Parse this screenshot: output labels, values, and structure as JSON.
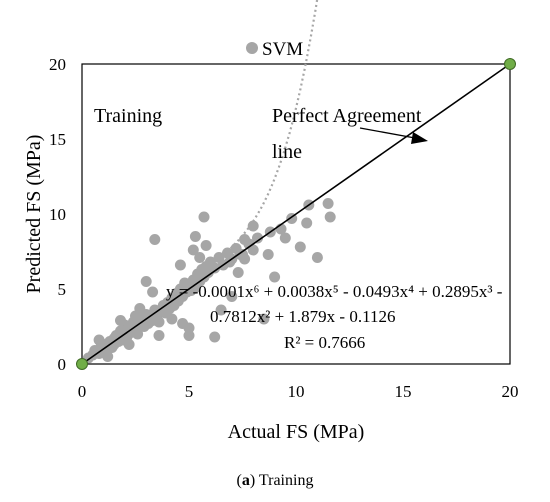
{
  "chart_data": {
    "type": "scatter",
    "xlabel": "Actual FS (MPa)",
    "ylabel": "Predicted FS (MPa)",
    "xlim": [
      0,
      20
    ],
    "ylim": [
      0,
      20
    ],
    "x_ticks": [
      "0",
      "5",
      "10",
      "15",
      "20"
    ],
    "y_ticks": [
      "0",
      "5",
      "10",
      "15",
      "20"
    ],
    "legend": {
      "label": "SVM",
      "position": "top-center",
      "marker_color": "#a6a6a6"
    },
    "annotations": {
      "panel": "Training",
      "perfect_line": [
        "Perfect Agreement",
        "line"
      ],
      "equation_line1": "y = -0.0001x⁶ + 0.0038x⁵ - 0.0493x⁴ + 0.2895x³ -",
      "equation_line2": "0.7812x² + 1.879x - 0.1126",
      "r_squared": "R² = 0.7666"
    },
    "colors": {
      "points": "#a6a6a6",
      "trend": "#a6a6a6",
      "perfect_line": "#000000",
      "endpoint": "#70ad47"
    },
    "perfect_agreement": [
      [
        0,
        0
      ],
      [
        20,
        20
      ]
    ],
    "series": [
      {
        "name": "SVM",
        "points": [
          [
            0.3,
            0.4
          ],
          [
            0.5,
            0.6
          ],
          [
            0.6,
            0.9
          ],
          [
            0.8,
            0.7
          ],
          [
            0.9,
            1.2
          ],
          [
            1.0,
            0.9
          ],
          [
            1.1,
            1.3
          ],
          [
            1.2,
            1.0
          ],
          [
            1.3,
            1.5
          ],
          [
            1.4,
            1.1
          ],
          [
            1.5,
            1.7
          ],
          [
            1.5,
            1.3
          ],
          [
            1.6,
            1.9
          ],
          [
            1.7,
            1.5
          ],
          [
            1.8,
            2.2
          ],
          [
            1.9,
            1.6
          ],
          [
            2.0,
            2.0
          ],
          [
            2.0,
            2.6
          ],
          [
            2.1,
            1.8
          ],
          [
            2.2,
            2.4
          ],
          [
            2.3,
            2.1
          ],
          [
            2.4,
            2.8
          ],
          [
            2.5,
            2.3
          ],
          [
            2.5,
            3.2
          ],
          [
            2.6,
            2.0
          ],
          [
            2.7,
            2.6
          ],
          [
            2.8,
            3.0
          ],
          [
            2.9,
            2.5
          ],
          [
            3.0,
            3.3
          ],
          [
            3.1,
            2.7
          ],
          [
            3.2,
            3.1
          ],
          [
            3.3,
            2.9
          ],
          [
            3.4,
            3.6
          ],
          [
            3.5,
            3.2
          ],
          [
            3.6,
            2.8
          ],
          [
            3.7,
            3.5
          ],
          [
            3.8,
            3.9
          ],
          [
            3.9,
            3.4
          ],
          [
            4.0,
            4.1
          ],
          [
            4.1,
            3.7
          ],
          [
            4.2,
            4.4
          ],
          [
            4.3,
            3.9
          ],
          [
            4.4,
            4.7
          ],
          [
            4.5,
            4.2
          ],
          [
            4.6,
            5.0
          ],
          [
            4.7,
            4.5
          ],
          [
            4.8,
            5.4
          ],
          [
            4.9,
            4.8
          ],
          [
            5.0,
            5.2
          ],
          [
            5.1,
            4.9
          ],
          [
            5.2,
            5.6
          ],
          [
            5.3,
            5.1
          ],
          [
            5.4,
            6.0
          ],
          [
            5.5,
            5.5
          ],
          [
            5.6,
            6.3
          ],
          [
            5.7,
            5.8
          ],
          [
            5.8,
            6.5
          ],
          [
            5.9,
            6.1
          ],
          [
            6.0,
            6.8
          ],
          [
            6.2,
            6.4
          ],
          [
            6.4,
            7.1
          ],
          [
            6.6,
            6.6
          ],
          [
            6.8,
            7.4
          ],
          [
            7.0,
            7.0
          ],
          [
            7.2,
            7.7
          ],
          [
            7.4,
            7.3
          ],
          [
            7.6,
            7.0
          ],
          [
            7.8,
            8.0
          ],
          [
            8.0,
            7.6
          ],
          [
            8.2,
            8.4
          ],
          [
            0.8,
            1.6
          ],
          [
            1.2,
            0.5
          ],
          [
            1.8,
            2.9
          ],
          [
            2.2,
            1.3
          ],
          [
            2.7,
            3.7
          ],
          [
            3.0,
            5.5
          ],
          [
            3.3,
            4.8
          ],
          [
            3.6,
            1.9
          ],
          [
            4.2,
            3.0
          ],
          [
            4.7,
            2.7
          ],
          [
            5.0,
            2.4
          ],
          [
            5.0,
            1.9
          ],
          [
            5.2,
            7.6
          ],
          [
            5.3,
            8.5
          ],
          [
            5.5,
            7.1
          ],
          [
            5.7,
            9.8
          ],
          [
            5.8,
            7.9
          ],
          [
            6.2,
            1.8
          ],
          [
            6.5,
            3.6
          ],
          [
            7.0,
            4.5
          ],
          [
            7.3,
            6.1
          ],
          [
            7.5,
            7.3
          ],
          [
            7.6,
            8.3
          ],
          [
            8.0,
            9.2
          ],
          [
            8.5,
            3.0
          ],
          [
            8.7,
            7.3
          ],
          [
            9.0,
            5.8
          ],
          [
            9.3,
            9.0
          ],
          [
            9.5,
            8.4
          ],
          [
            9.8,
            9.7
          ],
          [
            10.2,
            7.8
          ],
          [
            10.6,
            10.6
          ],
          [
            11.0,
            7.1
          ],
          [
            11.5,
            10.7
          ],
          [
            11.6,
            9.8
          ],
          [
            3.4,
            8.3
          ],
          [
            4.6,
            6.6
          ],
          [
            10.5,
            9.4
          ],
          [
            8.8,
            8.8
          ],
          [
            6.9,
            6.8
          ]
        ]
      }
    ]
  },
  "caption_prefix": "(",
  "caption_letter": "a",
  "caption_rest": ") Training"
}
